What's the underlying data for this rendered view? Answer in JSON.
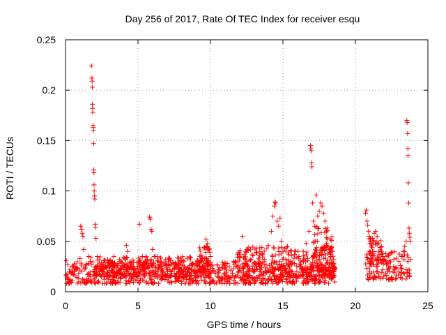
{
  "chart_data": {
    "type": "scatter",
    "title": "Day 256 of 2017, Rate Of TEC Index for receiver esqu",
    "xlabel": "GPS time / hours",
    "ylabel": "ROTI / TECUs",
    "xlim": [
      0,
      25
    ],
    "ylim": [
      0,
      0.25
    ],
    "x_ticks": [
      0,
      5,
      10,
      15,
      20,
      25
    ],
    "x_tick_labels": [
      "0",
      "5",
      "10",
      "15",
      "20",
      "25"
    ],
    "y_ticks": [
      0,
      0.05,
      0.1,
      0.15,
      0.2,
      0.25
    ],
    "y_tick_labels": [
      "0",
      "0.05",
      "0.1",
      "0.15",
      "0.2",
      "0.25"
    ],
    "grid": true,
    "marker": "+",
    "color": "#ff0000",
    "series": [
      {
        "name": "ROTI",
        "points": [
          [
            0.05,
            0.031
          ],
          [
            0.15,
            0.027
          ],
          [
            0.3,
            0.022
          ],
          [
            0.45,
            0.025
          ],
          [
            0.6,
            0.02
          ],
          [
            0.75,
            0.023
          ],
          [
            0.9,
            0.018
          ],
          [
            1.0,
            0.033
          ],
          [
            1.05,
            0.065
          ],
          [
            1.1,
            0.062
          ],
          [
            1.15,
            0.058
          ],
          [
            1.2,
            0.055
          ],
          [
            1.25,
            0.042
          ],
          [
            1.6,
            0.035
          ],
          [
            1.7,
            0.03
          ],
          [
            1.75,
            0.034
          ],
          [
            1.8,
            0.224
          ],
          [
            1.82,
            0.212
          ],
          [
            1.84,
            0.209
          ],
          [
            1.85,
            0.203
          ],
          [
            1.86,
            0.186
          ],
          [
            1.87,
            0.182
          ],
          [
            1.88,
            0.178
          ],
          [
            1.9,
            0.165
          ],
          [
            1.91,
            0.163
          ],
          [
            1.92,
            0.16
          ],
          [
            1.93,
            0.147
          ],
          [
            1.95,
            0.121
          ],
          [
            1.96,
            0.118
          ],
          [
            1.97,
            0.106
          ],
          [
            1.98,
            0.1
          ],
          [
            2.0,
            0.095
          ],
          [
            2.02,
            0.092
          ],
          [
            2.05,
            0.067
          ],
          [
            2.07,
            0.064
          ],
          [
            2.1,
            0.053
          ],
          [
            2.2,
            0.035
          ],
          [
            2.4,
            0.025
          ],
          [
            2.6,
            0.02
          ],
          [
            2.8,
            0.024
          ],
          [
            3.0,
            0.021
          ],
          [
            3.2,
            0.026
          ],
          [
            3.4,
            0.019
          ],
          [
            3.6,
            0.028
          ],
          [
            3.8,
            0.023
          ],
          [
            4.0,
            0.034
          ],
          [
            4.2,
            0.046
          ],
          [
            4.3,
            0.04
          ],
          [
            4.5,
            0.025
          ],
          [
            4.7,
            0.022
          ],
          [
            4.9,
            0.02
          ],
          [
            5.1,
            0.067
          ],
          [
            5.3,
            0.035
          ],
          [
            5.5,
            0.03
          ],
          [
            5.6,
            0.028
          ],
          [
            5.8,
            0.074
          ],
          [
            5.85,
            0.072
          ],
          [
            5.9,
            0.062
          ],
          [
            5.95,
            0.06
          ],
          [
            6.0,
            0.042
          ],
          [
            6.2,
            0.035
          ],
          [
            6.4,
            0.03
          ],
          [
            6.6,
            0.025
          ],
          [
            6.8,
            0.029
          ],
          [
            7.0,
            0.022
          ],
          [
            7.3,
            0.027
          ],
          [
            7.6,
            0.024
          ],
          [
            7.9,
            0.02
          ],
          [
            8.2,
            0.025
          ],
          [
            8.5,
            0.022
          ],
          [
            8.8,
            0.028
          ],
          [
            9.1,
            0.03
          ],
          [
            9.4,
            0.036
          ],
          [
            9.6,
            0.044
          ],
          [
            9.7,
            0.052
          ],
          [
            9.8,
            0.048
          ],
          [
            9.9,
            0.042
          ],
          [
            10.0,
            0.035
          ],
          [
            10.2,
            0.021
          ],
          [
            10.5,
            0.018
          ],
          [
            10.8,
            0.024
          ],
          [
            11.0,
            0.028
          ],
          [
            11.3,
            0.025
          ],
          [
            11.6,
            0.03
          ],
          [
            11.9,
            0.038
          ],
          [
            12.2,
            0.055
          ],
          [
            12.5,
            0.042
          ],
          [
            12.8,
            0.032
          ],
          [
            13.1,
            0.028
          ],
          [
            13.4,
            0.036
          ],
          [
            13.7,
            0.03
          ],
          [
            14.0,
            0.046
          ],
          [
            14.2,
            0.06
          ],
          [
            14.3,
            0.075
          ],
          [
            14.4,
            0.085
          ],
          [
            14.45,
            0.089
          ],
          [
            14.5,
            0.088
          ],
          [
            14.6,
            0.07
          ],
          [
            14.7,
            0.065
          ],
          [
            14.8,
            0.073
          ],
          [
            14.9,
            0.05
          ],
          [
            15.0,
            0.04
          ],
          [
            15.2,
            0.032
          ],
          [
            15.5,
            0.03
          ],
          [
            15.8,
            0.028
          ],
          [
            16.1,
            0.035
          ],
          [
            16.4,
            0.04
          ],
          [
            16.6,
            0.048
          ],
          [
            16.8,
            0.06
          ],
          [
            16.9,
            0.145
          ],
          [
            16.92,
            0.142
          ],
          [
            16.95,
            0.14
          ],
          [
            16.97,
            0.128
          ],
          [
            17.0,
            0.124
          ],
          [
            17.05,
            0.088
          ],
          [
            17.1,
            0.07
          ],
          [
            17.2,
            0.065
          ],
          [
            17.3,
            0.096
          ],
          [
            17.4,
            0.075
          ],
          [
            17.5,
            0.08
          ],
          [
            17.6,
            0.088
          ],
          [
            17.7,
            0.085
          ],
          [
            17.8,
            0.078
          ],
          [
            17.9,
            0.07
          ],
          [
            18.0,
            0.06
          ],
          [
            18.1,
            0.045
          ],
          [
            18.2,
            0.042
          ],
          [
            18.3,
            0.035
          ],
          [
            18.4,
            0.04
          ],
          [
            18.5,
            0.032
          ],
          [
            18.55,
            0.025
          ],
          [
            20.7,
            0.078
          ],
          [
            20.75,
            0.081
          ],
          [
            20.8,
            0.07
          ],
          [
            20.85,
            0.066
          ],
          [
            20.9,
            0.06
          ],
          [
            20.95,
            0.055
          ],
          [
            21.0,
            0.048
          ],
          [
            21.1,
            0.045
          ],
          [
            21.2,
            0.05
          ],
          [
            21.3,
            0.058
          ],
          [
            21.4,
            0.06
          ],
          [
            21.5,
            0.055
          ],
          [
            21.6,
            0.048
          ],
          [
            21.7,
            0.044
          ],
          [
            21.8,
            0.04
          ],
          [
            21.9,
            0.035
          ],
          [
            22.0,
            0.032
          ],
          [
            22.2,
            0.028
          ],
          [
            22.4,
            0.025
          ],
          [
            22.6,
            0.02
          ],
          [
            22.8,
            0.024
          ],
          [
            23.0,
            0.03
          ],
          [
            23.2,
            0.035
          ],
          [
            23.3,
            0.04
          ],
          [
            23.4,
            0.045
          ],
          [
            23.5,
            0.05
          ],
          [
            23.55,
            0.17
          ],
          [
            23.57,
            0.168
          ],
          [
            23.6,
            0.157
          ],
          [
            23.62,
            0.142
          ],
          [
            23.63,
            0.135
          ],
          [
            23.65,
            0.108
          ],
          [
            23.68,
            0.088
          ],
          [
            23.7,
            0.063
          ],
          [
            23.72,
            0.058
          ],
          [
            23.75,
            0.054
          ],
          [
            23.78,
            0.05
          ],
          [
            23.8,
            0.032
          ]
        ],
        "dense_bands": [
          {
            "x_from": 0.0,
            "x_to": 18.6,
            "y_from": 0.008,
            "y_to": 0.03
          },
          {
            "x_from": 2.0,
            "x_to": 10.0,
            "y_from": 0.015,
            "y_to": 0.035
          },
          {
            "x_from": 9.2,
            "x_to": 10.0,
            "y_from": 0.02,
            "y_to": 0.045
          },
          {
            "x_from": 11.8,
            "x_to": 18.6,
            "y_from": 0.015,
            "y_to": 0.045
          },
          {
            "x_from": 17.0,
            "x_to": 18.6,
            "y_from": 0.02,
            "y_to": 0.065
          },
          {
            "x_from": 20.7,
            "x_to": 23.8,
            "y_from": 0.012,
            "y_to": 0.04
          },
          {
            "x_from": 20.9,
            "x_to": 21.9,
            "y_from": 0.025,
            "y_to": 0.055
          }
        ]
      }
    ]
  }
}
